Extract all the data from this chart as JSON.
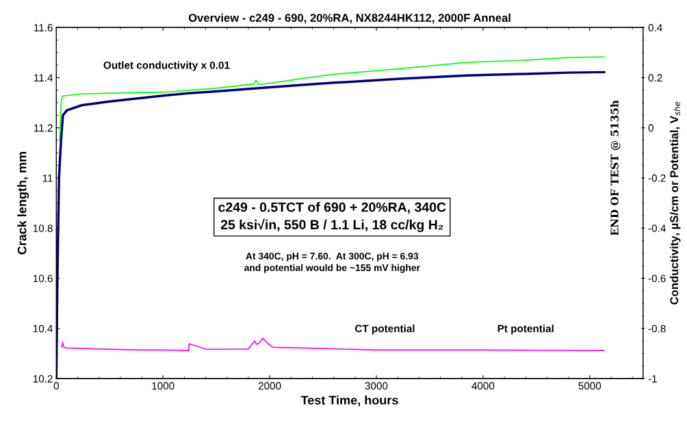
{
  "chart_data": {
    "type": "line",
    "title": "Overview - c249 - 690, 20%RA, NX8244HK112, 2000F Anneal",
    "xlabel": "Test Time, hours",
    "ylabel": "Crack length, mm",
    "y2label": "Conductivity, µS/cm or Potential, V$_{she}$",
    "xlim": [
      0,
      5500
    ],
    "xticks": [
      0,
      1000,
      2000,
      3000,
      4000,
      5000
    ],
    "ylim": [
      10.2,
      11.6
    ],
    "yticks": [
      10.2,
      10.4,
      10.6,
      10.8,
      11,
      11.2,
      11.4,
      11.6
    ],
    "y2lim": [
      -1,
      0.4
    ],
    "y2ticks": [
      -1,
      -0.8,
      -0.6,
      -0.4,
      -0.2,
      0,
      0.2,
      0.4
    ],
    "grid": false,
    "marker": "none",
    "line_style": "solid",
    "series": [
      {
        "color": "#000080",
        "x": [
          0,
          10,
          25,
          40,
          49,
          62,
          100,
          237,
          500,
          735,
          1047,
          1234,
          1500,
          1857,
          2200,
          2604,
          2791,
          3200,
          3850,
          4400,
          4800,
          5135
        ],
        "values": [
          10.2,
          10.6,
          11.0,
          11.12,
          11.18,
          11.25,
          11.27,
          11.29,
          11.305,
          11.316,
          11.33,
          11.338,
          11.345,
          11.357,
          11.368,
          11.38,
          11.384,
          11.395,
          11.409,
          11.415,
          11.42,
          11.422
        ]
      },
      {
        "color": "#00ff00",
        "axis": "y2",
        "x": [
          30,
          37,
          45,
          55,
          62,
          237,
          500,
          1047,
          1500,
          1857,
          1870,
          1900,
          2200,
          2604,
          2791,
          3200,
          3850,
          4400,
          4800,
          5135
        ],
        "values": [
          -0.05,
          0.0,
          0.1,
          0.12,
          0.127,
          0.135,
          0.138,
          0.143,
          0.158,
          0.175,
          0.19,
          0.172,
          0.19,
          0.214,
          0.22,
          0.235,
          0.261,
          0.27,
          0.28,
          0.283
        ]
      },
      {
        "color": "#ff00ff",
        "axis": "y2",
        "x": [
          50,
          60,
          70,
          100,
          400,
          800,
          1000,
          1240,
          1245,
          1300,
          1408,
          1600,
          1800,
          1857,
          1880,
          1900,
          1938,
          1970,
          2031,
          2500,
          3000,
          4000,
          4500,
          5135
        ],
        "values": [
          -0.875,
          -0.855,
          -0.875,
          -0.878,
          -0.882,
          -0.886,
          -0.886,
          -0.888,
          -0.861,
          -0.868,
          -0.883,
          -0.883,
          -0.882,
          -0.85,
          -0.864,
          -0.858,
          -0.839,
          -0.855,
          -0.875,
          -0.88,
          -0.886,
          -0.886,
          -0.887,
          -0.888
        ]
      }
    ],
    "annotations": [
      "Outlet conductivity x 0.01",
      "c249 - 0.5TCT of 690 + 20%RA, 340C\n25 ksi√in, 550 B / 1.1 Li, 18 cc/kg H₂",
      "At 340C, pH = 7.60.  At 300C, pH = 6.93\nand potential would be ~155 mV higher",
      "CT potential",
      "Pt potential",
      "END OF TEST @ 5135h"
    ]
  }
}
